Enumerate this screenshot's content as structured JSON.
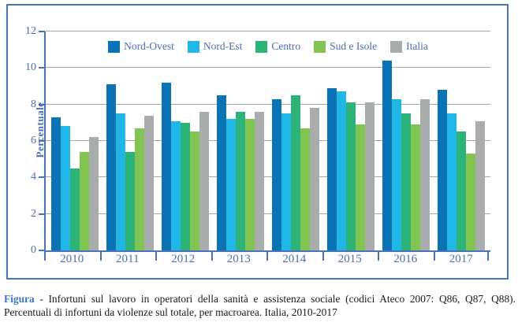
{
  "figure": {
    "y_axis_label": "Percentuale"
  },
  "caption": {
    "lead": "Figura",
    "line1_rest": " - Infortuni sul lavoro in operatori della sanità e assistenza sociale (codici Ateco 2007: Q86, Q87, Q88).",
    "line2": "Percentuali di infortuni da violenze sul totale, per macroarea. Italia, 2010-2017"
  },
  "chart_data": {
    "type": "bar",
    "title": "",
    "xlabel": "",
    "ylabel": "Percentuale",
    "ylim": [
      0,
      12
    ],
    "yticks": [
      0,
      2,
      4,
      6,
      8,
      10,
      12
    ],
    "grid": true,
    "legend_position": "top-center",
    "categories": [
      "2010",
      "2011",
      "2012",
      "2013",
      "2014",
      "2015",
      "2016",
      "2017"
    ],
    "series": [
      {
        "name": "Nord-Ovest",
        "color": "#0a73b6",
        "values": [
          7.3,
          9.1,
          9.2,
          8.5,
          8.3,
          8.9,
          10.4,
          8.8
        ]
      },
      {
        "name": "Nord-Est",
        "color": "#20b6e6",
        "values": [
          6.8,
          7.5,
          7.1,
          7.2,
          7.5,
          8.7,
          8.3,
          7.5
        ]
      },
      {
        "name": "Centro",
        "color": "#2cb377",
        "values": [
          4.5,
          5.4,
          7.0,
          7.6,
          8.5,
          8.1,
          7.5,
          6.5
        ]
      },
      {
        "name": "Sud e Isole",
        "color": "#81c452",
        "values": [
          5.4,
          6.7,
          6.5,
          7.2,
          6.7,
          6.9,
          6.9,
          5.3
        ]
      },
      {
        "name": "Italia",
        "color": "#a9acac",
        "values": [
          6.2,
          7.4,
          7.6,
          7.6,
          7.8,
          8.1,
          8.3,
          7.1
        ]
      }
    ],
    "colors": {
      "axis": "#4a73b9",
      "grid": "#a8a8a8",
      "tick_text": "#4a6fb5"
    }
  }
}
